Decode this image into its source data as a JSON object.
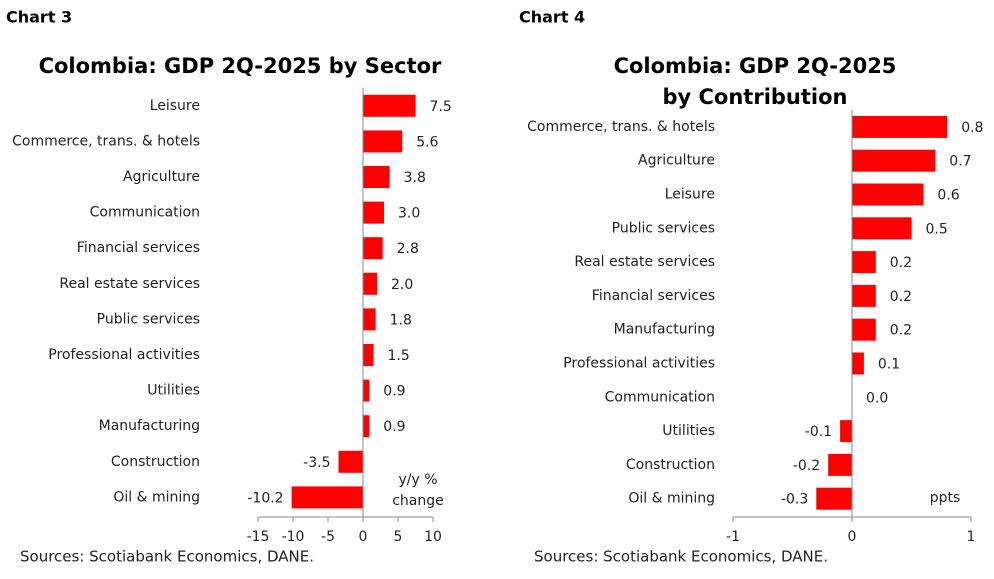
{
  "chart_data": [
    {
      "type": "bar",
      "orientation": "horizontal",
      "chart_label": "Chart 3",
      "title": [
        "Colombia: GDP 2Q-2025 by Sector"
      ],
      "categories": [
        "Leisure",
        "Commerce, trans. & hotels",
        "Agriculture",
        "Communication",
        "Financial services",
        "Real estate services",
        "Public services",
        "Professional activities",
        "Utilities",
        "Manufacturing",
        "Construction",
        "Oil & mining"
      ],
      "values": [
        7.5,
        5.6,
        3.8,
        3.0,
        2.8,
        2.0,
        1.8,
        1.5,
        0.9,
        0.9,
        -3.5,
        -10.2
      ],
      "value_labels": [
        "7.5",
        "5.6",
        "3.8",
        "3.0",
        "2.8",
        "2.0",
        "1.8",
        "1.5",
        "0.9",
        "0.9",
        "-3.5",
        "-10.2"
      ],
      "color": "#ff0000",
      "xlim": [
        -15,
        10
      ],
      "xticks": [
        -15,
        -10,
        -5,
        0,
        5,
        10
      ],
      "annotation": [
        "y/y %",
        "change"
      ],
      "source": "Sources: Scotiabank Economics, DANE."
    },
    {
      "type": "bar",
      "orientation": "horizontal",
      "chart_label": "Chart 4",
      "title": [
        "Colombia: GDP 2Q-2025",
        "by Contribution"
      ],
      "categories": [
        "Commerce, trans. & hotels",
        "Agriculture",
        "Leisure",
        "Public services",
        "Real estate services",
        "Financial services",
        "Manufacturing",
        "Professional activities",
        "Communication",
        "Utilities",
        "Construction",
        "Oil & mining"
      ],
      "values": [
        0.8,
        0.7,
        0.6,
        0.5,
        0.2,
        0.2,
        0.2,
        0.1,
        0.0,
        -0.1,
        -0.2,
        -0.3
      ],
      "value_labels": [
        "0.8",
        "0.7",
        "0.6",
        "0.5",
        "0.2",
        "0.2",
        "0.2",
        "0.1",
        "0.0",
        "-0.1",
        "-0.2",
        "-0.3"
      ],
      "color": "#ff0000",
      "xlim": [
        -1,
        1
      ],
      "xticks": [
        -1,
        0,
        1
      ],
      "annotation": [
        "ppts"
      ],
      "source": "Sources: Scotiabank Economics, DANE."
    }
  ]
}
